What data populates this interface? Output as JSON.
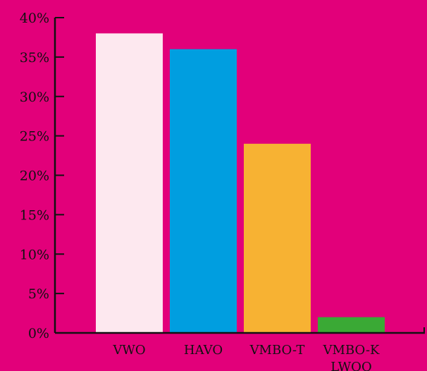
{
  "chart_data": {
    "type": "bar",
    "categories": [
      "VWO",
      "HAVO",
      "VMBO-T",
      "VMBO-K"
    ],
    "category_sublabels": [
      "",
      "",
      "",
      "LWOO"
    ],
    "values": [
      38,
      36,
      24,
      2
    ],
    "value_unit": "%",
    "ylim": [
      0,
      40
    ],
    "yticks": [
      0,
      5,
      10,
      15,
      20,
      25,
      30,
      35,
      40
    ],
    "ytick_labels": [
      "0%",
      "5%",
      "10%",
      "15%",
      "20%",
      "25%",
      "30%",
      "35%",
      "40%"
    ],
    "title": "",
    "xlabel": "",
    "ylabel": "",
    "grid": false,
    "legend": "none",
    "colors": {
      "background": "#e2007a",
      "axis": "#111111",
      "bars": [
        "#fde8ef",
        "#009ee0",
        "#f7b233",
        "#3aa935"
      ]
    }
  }
}
